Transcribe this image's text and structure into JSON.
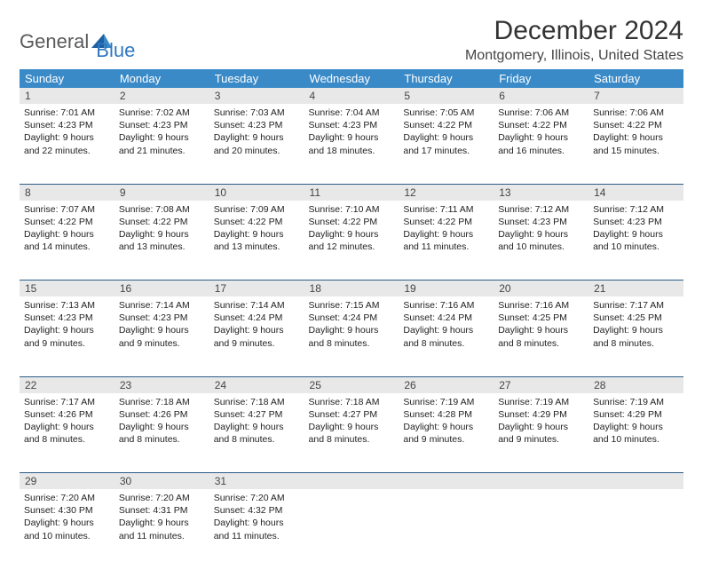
{
  "brand": {
    "word1": "General",
    "word2": "Blue"
  },
  "title": "December 2024",
  "location": "Montgomery, Illinois, United States",
  "colors": {
    "header_bg": "#3a8ac8",
    "header_fg": "#ffffff",
    "row_divider": "#2b5d88",
    "daynum_bg": "#e8e8e8",
    "logo_gray": "#5a5a5a",
    "logo_blue": "#2f78bf"
  },
  "day_headers": [
    "Sunday",
    "Monday",
    "Tuesday",
    "Wednesday",
    "Thursday",
    "Friday",
    "Saturday"
  ],
  "weeks": [
    [
      {
        "n": "1",
        "sr": "7:01 AM",
        "ss": "4:23 PM",
        "dl": "9 hours and 22 minutes."
      },
      {
        "n": "2",
        "sr": "7:02 AM",
        "ss": "4:23 PM",
        "dl": "9 hours and 21 minutes."
      },
      {
        "n": "3",
        "sr": "7:03 AM",
        "ss": "4:23 PM",
        "dl": "9 hours and 20 minutes."
      },
      {
        "n": "4",
        "sr": "7:04 AM",
        "ss": "4:23 PM",
        "dl": "9 hours and 18 minutes."
      },
      {
        "n": "5",
        "sr": "7:05 AM",
        "ss": "4:22 PM",
        "dl": "9 hours and 17 minutes."
      },
      {
        "n": "6",
        "sr": "7:06 AM",
        "ss": "4:22 PM",
        "dl": "9 hours and 16 minutes."
      },
      {
        "n": "7",
        "sr": "7:06 AM",
        "ss": "4:22 PM",
        "dl": "9 hours and 15 minutes."
      }
    ],
    [
      {
        "n": "8",
        "sr": "7:07 AM",
        "ss": "4:22 PM",
        "dl": "9 hours and 14 minutes."
      },
      {
        "n": "9",
        "sr": "7:08 AM",
        "ss": "4:22 PM",
        "dl": "9 hours and 13 minutes."
      },
      {
        "n": "10",
        "sr": "7:09 AM",
        "ss": "4:22 PM",
        "dl": "9 hours and 13 minutes."
      },
      {
        "n": "11",
        "sr": "7:10 AM",
        "ss": "4:22 PM",
        "dl": "9 hours and 12 minutes."
      },
      {
        "n": "12",
        "sr": "7:11 AM",
        "ss": "4:22 PM",
        "dl": "9 hours and 11 minutes."
      },
      {
        "n": "13",
        "sr": "7:12 AM",
        "ss": "4:23 PM",
        "dl": "9 hours and 10 minutes."
      },
      {
        "n": "14",
        "sr": "7:12 AM",
        "ss": "4:23 PM",
        "dl": "9 hours and 10 minutes."
      }
    ],
    [
      {
        "n": "15",
        "sr": "7:13 AM",
        "ss": "4:23 PM",
        "dl": "9 hours and 9 minutes."
      },
      {
        "n": "16",
        "sr": "7:14 AM",
        "ss": "4:23 PM",
        "dl": "9 hours and 9 minutes."
      },
      {
        "n": "17",
        "sr": "7:14 AM",
        "ss": "4:24 PM",
        "dl": "9 hours and 9 minutes."
      },
      {
        "n": "18",
        "sr": "7:15 AM",
        "ss": "4:24 PM",
        "dl": "9 hours and 8 minutes."
      },
      {
        "n": "19",
        "sr": "7:16 AM",
        "ss": "4:24 PM",
        "dl": "9 hours and 8 minutes."
      },
      {
        "n": "20",
        "sr": "7:16 AM",
        "ss": "4:25 PM",
        "dl": "9 hours and 8 minutes."
      },
      {
        "n": "21",
        "sr": "7:17 AM",
        "ss": "4:25 PM",
        "dl": "9 hours and 8 minutes."
      }
    ],
    [
      {
        "n": "22",
        "sr": "7:17 AM",
        "ss": "4:26 PM",
        "dl": "9 hours and 8 minutes."
      },
      {
        "n": "23",
        "sr": "7:18 AM",
        "ss": "4:26 PM",
        "dl": "9 hours and 8 minutes."
      },
      {
        "n": "24",
        "sr": "7:18 AM",
        "ss": "4:27 PM",
        "dl": "9 hours and 8 minutes."
      },
      {
        "n": "25",
        "sr": "7:18 AM",
        "ss": "4:27 PM",
        "dl": "9 hours and 8 minutes."
      },
      {
        "n": "26",
        "sr": "7:19 AM",
        "ss": "4:28 PM",
        "dl": "9 hours and 9 minutes."
      },
      {
        "n": "27",
        "sr": "7:19 AM",
        "ss": "4:29 PM",
        "dl": "9 hours and 9 minutes."
      },
      {
        "n": "28",
        "sr": "7:19 AM",
        "ss": "4:29 PM",
        "dl": "9 hours and 10 minutes."
      }
    ],
    [
      {
        "n": "29",
        "sr": "7:20 AM",
        "ss": "4:30 PM",
        "dl": "9 hours and 10 minutes."
      },
      {
        "n": "30",
        "sr": "7:20 AM",
        "ss": "4:31 PM",
        "dl": "9 hours and 11 minutes."
      },
      {
        "n": "31",
        "sr": "7:20 AM",
        "ss": "4:32 PM",
        "dl": "9 hours and 11 minutes."
      },
      null,
      null,
      null,
      null
    ]
  ],
  "labels": {
    "sunrise": "Sunrise:",
    "sunset": "Sunset:",
    "daylight": "Daylight:"
  }
}
